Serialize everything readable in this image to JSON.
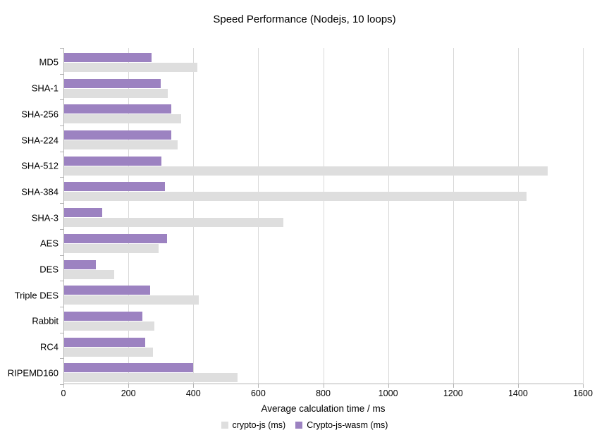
{
  "chart_data": {
    "type": "bar",
    "orientation": "horizontal",
    "title": "Speed Performance (Nodejs, 10 loops)",
    "xlabel": "Average calculation time / ms",
    "ylabel": "",
    "xlim": [
      0,
      1600
    ],
    "xticks": [
      0,
      200,
      400,
      600,
      800,
      1000,
      1200,
      1400,
      1600
    ],
    "grid": "vertical",
    "legend_position": "bottom",
    "categories": [
      "MD5",
      "SHA-1",
      "SHA-256",
      "SHA-224",
      "SHA-512",
      "SHA-384",
      "SHA-3",
      "AES",
      "DES",
      "Triple DES",
      "Rabbit",
      "RC4",
      "RIPEMD160"
    ],
    "series": [
      {
        "name": "crypto-js (ms)",
        "color": "#dedede",
        "values": [
          410,
          320,
          360,
          350,
          1490,
          1425,
          675,
          290,
          155,
          415,
          278,
          274,
          533
        ]
      },
      {
        "name": "Crypto-js-wasm (ms)",
        "color": "#9c82c1",
        "values": [
          270,
          297,
          330,
          330,
          300,
          310,
          118,
          318,
          98,
          265,
          242,
          249,
          398
        ]
      }
    ],
    "colors": {
      "grid": "#d9d9d9",
      "axis": "#b3b3b3",
      "text": "#000000",
      "background": "#ffffff"
    }
  }
}
